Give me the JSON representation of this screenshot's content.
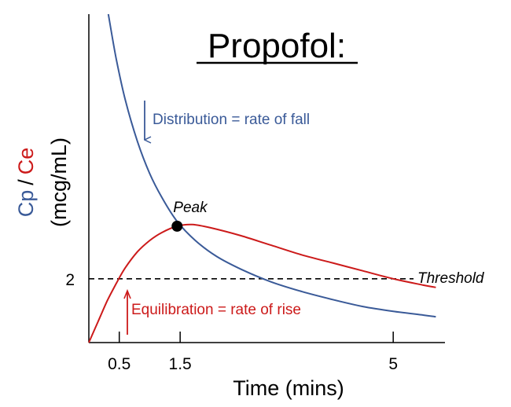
{
  "colors": {
    "cp": "#3a5a98",
    "ce": "#cc1a1a",
    "axis": "#000000",
    "threshold": "#000000"
  },
  "chart_data": {
    "type": "line",
    "title": "Propofol:",
    "xlabel": "Time (mins)",
    "ylabel": {
      "cp": "Cp",
      "separator": "/",
      "ce": "Ce",
      "units": "(mcg/mL)"
    },
    "x_ticks": [
      {
        "value": 0.5,
        "label": "0.5"
      },
      {
        "value": 1.5,
        "label": "1.5"
      },
      {
        "value": 5,
        "label": "5"
      }
    ],
    "y_ticks": [
      {
        "value": 2,
        "label": "2"
      }
    ],
    "xlim": [
      0,
      5.85
    ],
    "ylim": [
      0,
      10.3
    ],
    "grid": false,
    "series": [
      {
        "key": "cp",
        "x": [
          0.32,
          0.45,
          0.6,
          0.8,
          1.0,
          1.2,
          1.45,
          1.75,
          2.1,
          2.5,
          3.0,
          3.5,
          4.0,
          4.5,
          5.0,
          5.5,
          5.7
        ],
        "y": [
          10.3,
          8.9,
          7.6,
          6.3,
          5.3,
          4.55,
          3.8,
          3.2,
          2.7,
          2.3,
          1.9,
          1.6,
          1.35,
          1.13,
          0.98,
          0.86,
          0.81
        ]
      },
      {
        "key": "ce",
        "x": [
          0.0,
          0.15,
          0.3,
          0.45,
          0.6,
          0.8,
          1.0,
          1.2,
          1.45,
          1.7,
          2.0,
          2.5,
          3.0,
          3.5,
          4.0,
          4.5,
          5.0,
          5.5,
          5.7
        ],
        "y": [
          0.0,
          0.65,
          1.3,
          1.85,
          2.35,
          2.85,
          3.2,
          3.45,
          3.65,
          3.7,
          3.6,
          3.35,
          3.05,
          2.75,
          2.5,
          2.25,
          2.0,
          1.8,
          1.73
        ]
      }
    ],
    "threshold": {
      "value": 2,
      "label": "Threshold"
    },
    "peak": {
      "x": 1.45,
      "y": 3.65,
      "label": "Peak"
    },
    "annotations": {
      "distribution": "Distribution = rate of fall",
      "equilibration": "Equilibration = rate of rise"
    }
  }
}
